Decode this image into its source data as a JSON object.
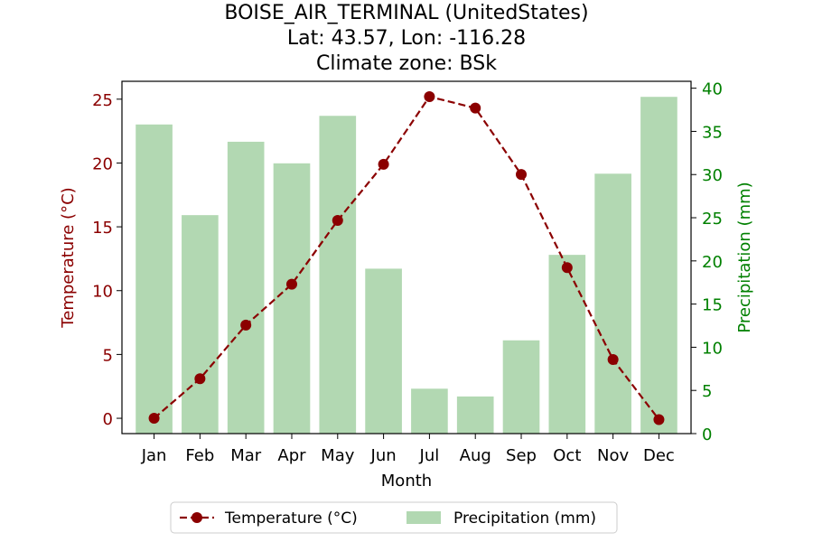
{
  "chart_data": {
    "type": "bar",
    "title_lines": [
      "BOISE_AIR_TERMINAL (UnitedStates)",
      "Lat: 43.57, Lon: -116.28",
      "Climate zone: BSk"
    ],
    "xlabel": "Month",
    "ylabel_left": "Temperature (°C)",
    "ylabel_right": "Precipitation (mm)",
    "categories": [
      "Jan",
      "Feb",
      "Mar",
      "Apr",
      "May",
      "Jun",
      "Jul",
      "Aug",
      "Sep",
      "Oct",
      "Nov",
      "Dec"
    ],
    "series": [
      {
        "name": "Temperature (°C)",
        "type": "line",
        "axis": "left",
        "color": "#8b0000",
        "values": [
          0.0,
          3.1,
          7.3,
          10.5,
          15.5,
          19.9,
          25.2,
          24.3,
          19.1,
          11.8,
          4.6,
          -0.1
        ]
      },
      {
        "name": "Precipitation (mm)",
        "type": "bar",
        "axis": "right",
        "color": "#b2d8b2",
        "values": [
          35.8,
          25.3,
          33.8,
          31.3,
          36.8,
          19.1,
          5.2,
          4.3,
          10.8,
          20.7,
          30.1,
          39.0
        ]
      }
    ],
    "y_left": {
      "min": -1.2,
      "max": 26.4,
      "ticks": [
        0,
        5,
        10,
        15,
        20,
        25
      ],
      "color": "#8b0000"
    },
    "y_right": {
      "min": 0,
      "max": 40.8,
      "ticks": [
        0,
        5,
        10,
        15,
        20,
        25,
        30,
        35,
        40
      ],
      "color": "#008000"
    },
    "grid": false,
    "legend_position": "bottom-center"
  }
}
